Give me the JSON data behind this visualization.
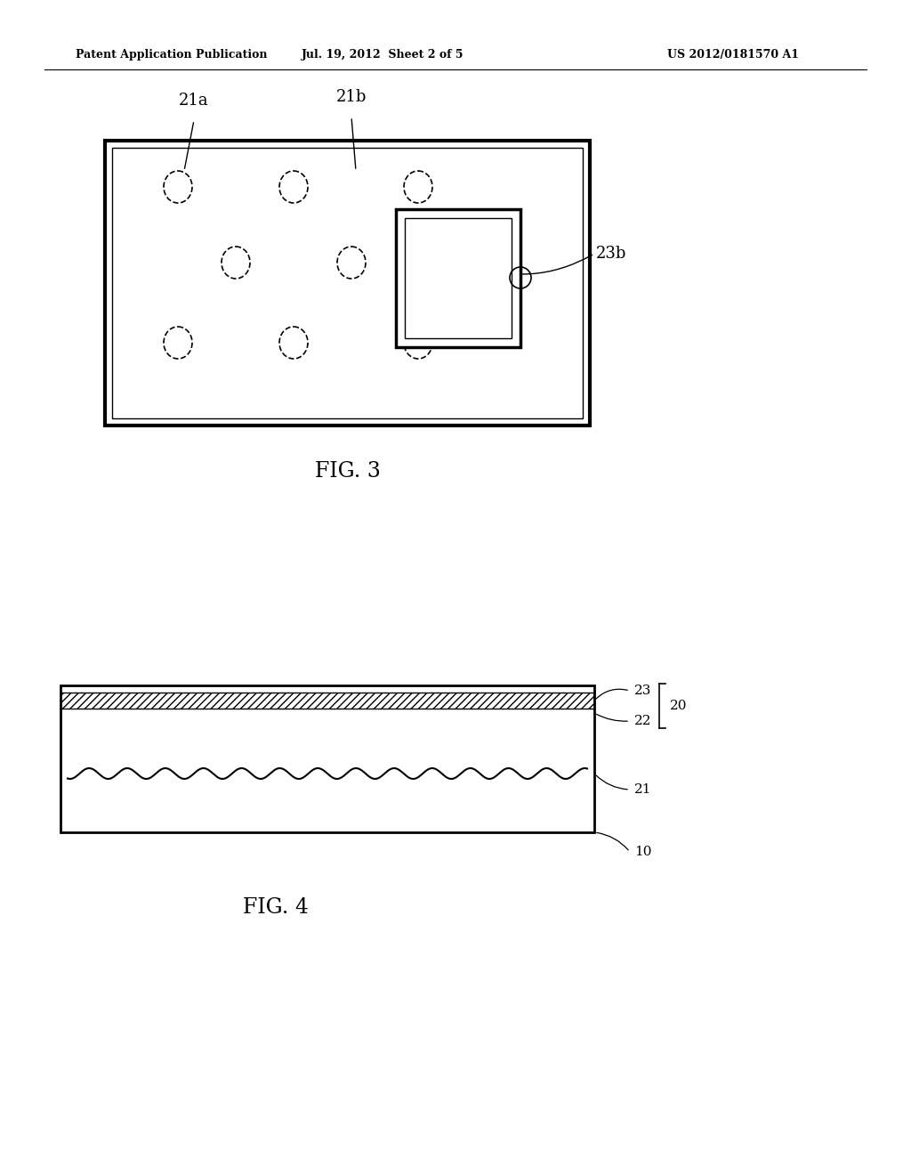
{
  "bg_color": "#ffffff",
  "text_color": "#000000",
  "header_left": "Patent Application Publication",
  "header_mid": "Jul. 19, 2012  Sheet 2 of 5",
  "header_right": "US 2012/0181570 A1",
  "fig3_label": "FIG. 3",
  "fig4_label": "FIG. 4"
}
